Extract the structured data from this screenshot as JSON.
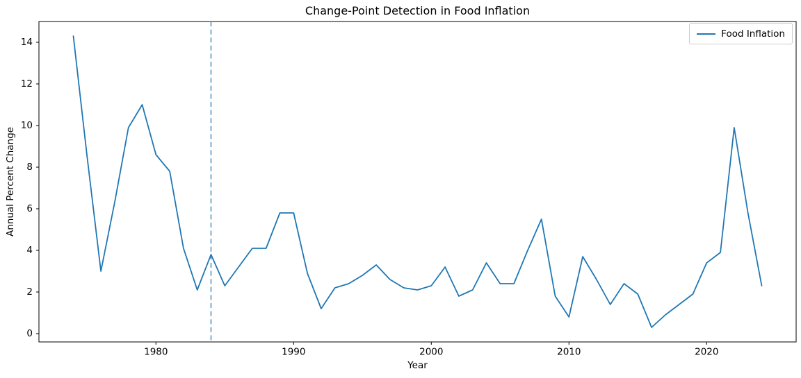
{
  "figure": {
    "title": "Change-Point Detection in Food Inflation"
  },
  "chart_data": {
    "type": "line",
    "title": "Change-Point Detection in Food Inflation",
    "xlabel": "Year",
    "ylabel": "Annual Percent Change",
    "grid": false,
    "xlim": [
      1971.5,
      2026.5
    ],
    "ylim": [
      -0.4,
      15.0
    ],
    "xticks": [
      1980,
      1990,
      2000,
      2010,
      2020
    ],
    "yticks": [
      0,
      2,
      4,
      6,
      8,
      10,
      12,
      14
    ],
    "legend": {
      "position": "upper right",
      "entries": [
        "Food Inflation"
      ]
    },
    "change_point_year": 1984,
    "change_point_color": "#68a4ce",
    "x": [
      1974,
      1975,
      1976,
      1977,
      1978,
      1979,
      1980,
      1981,
      1982,
      1983,
      1984,
      1985,
      1986,
      1987,
      1988,
      1989,
      1990,
      1991,
      1992,
      1993,
      1994,
      1995,
      1996,
      1997,
      1998,
      1999,
      2000,
      2001,
      2002,
      2003,
      2004,
      2005,
      2006,
      2007,
      2008,
      2009,
      2010,
      2011,
      2012,
      2013,
      2014,
      2015,
      2016,
      2017,
      2018,
      2019,
      2020,
      2021,
      2022,
      2023,
      2024
    ],
    "series": [
      {
        "name": "Food Inflation",
        "color": "#1f77b4",
        "values": [
          14.3,
          8.5,
          3.0,
          6.3,
          9.9,
          11.0,
          8.6,
          7.8,
          4.1,
          2.1,
          3.8,
          2.3,
          3.2,
          4.1,
          4.1,
          5.8,
          5.8,
          2.9,
          1.2,
          2.2,
          2.4,
          2.8,
          3.3,
          2.6,
          2.2,
          2.1,
          2.3,
          3.2,
          1.8,
          2.1,
          3.4,
          2.4,
          2.4,
          4.0,
          5.5,
          1.8,
          0.8,
          3.7,
          2.6,
          1.4,
          2.4,
          1.9,
          0.3,
          0.9,
          1.4,
          1.9,
          3.4,
          3.9,
          9.9,
          5.8,
          2.3
        ]
      }
    ]
  }
}
